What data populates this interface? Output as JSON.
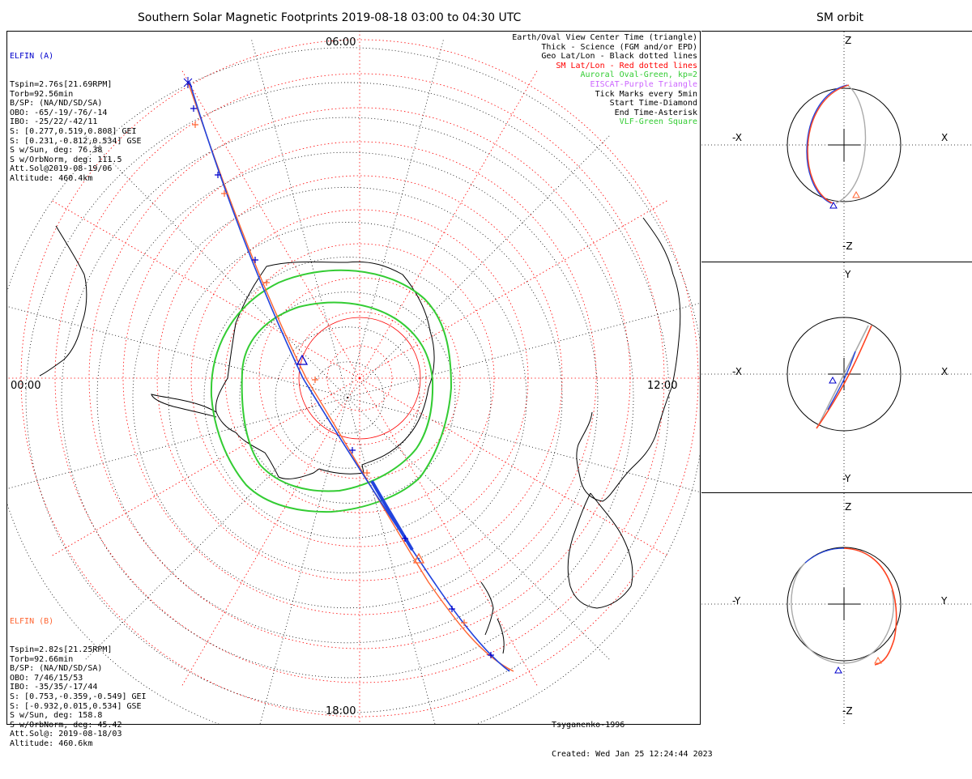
{
  "header": {
    "title": "Southern Solar Magnetic Footprints 2019-08-18 03:00 to 04:30 UTC",
    "orbit_title": "SM orbit"
  },
  "elfin_a": {
    "name": "ELFIN (A)",
    "color": "#0000cc",
    "lines": [
      "Tspin=2.76s[21.69RPM]",
      "Torb=92.56min",
      "B/SP: (NA/ND/SD/SA)",
      "OBO: -65/-19/-76/-14",
      "IBO: -25/22/-42/11",
      "S: [0.277,0.519,0.808] GEI",
      "S: [0.231,-0.812,0.534] GSE",
      "S w/Sun, deg: 76.38",
      "S w/OrbNorm, deg: 111.5",
      "Att.Sol@2019-08-19/06",
      "Altitude: 460.4km"
    ]
  },
  "elfin_b": {
    "name": "ELFIN (B)",
    "color": "#ff6633",
    "lines": [
      "Tspin=2.82s[21.25RPM]",
      "Torb=92.66min",
      "B/SP: (NA/ND/SD/SA)",
      "OBO: 7/46/15/53",
      "IBO: -35/35/-17/44",
      "S: [0.753,-0.359,-0.549] GEI",
      "S: [-0.932,0.015,0.534] GSE",
      "S w/Sun, deg: 158.8",
      "S w/OrbNorm, deg: 45.42",
      "Att.Sol@: 2019-08-18/03",
      "Altitude: 460.6km"
    ]
  },
  "legend": [
    {
      "text": "Earth/Oval View Center Time (triangle)",
      "color": "#000000"
    },
    {
      "text": "Thick - Science (FGM and/or EPD)",
      "color": "#000000"
    },
    {
      "text": "Geo Lat/Lon - Black dotted lines",
      "color": "#000000"
    },
    {
      "text": "SM Lat/Lon - Red dotted lines",
      "color": "#ff0000"
    },
    {
      "text": "Auroral Oval-Green, kp=2",
      "color": "#33cc33"
    },
    {
      "text": "EISCAT-Purple Triangle",
      "color": "#cc66ff"
    },
    {
      "text": "Tick Marks every 5min",
      "color": "#000000"
    },
    {
      "text": "Start Time-Diamond",
      "color": "#000000"
    },
    {
      "text": "End Time-Asterisk",
      "color": "#000000"
    },
    {
      "text": "VLF-Green Square",
      "color": "#33cc33"
    }
  ],
  "clock_labels": {
    "top": "06:00",
    "left": "00:00",
    "right": "12:00",
    "bottom": "18:00"
  },
  "footer": {
    "model": "Tsyganenko-1996",
    "created": "Created: Wed Jan 25 12:24:44 2023"
  },
  "orbit_panels": [
    {
      "up": "Z",
      "down": "-Z",
      "left": "-X",
      "right": "X"
    },
    {
      "up": "Y",
      "down": "-Y",
      "left": "-X",
      "right": "X"
    },
    {
      "up": "Z",
      "down": "-Z",
      "left": "-Y",
      "right": "Y"
    }
  ]
}
